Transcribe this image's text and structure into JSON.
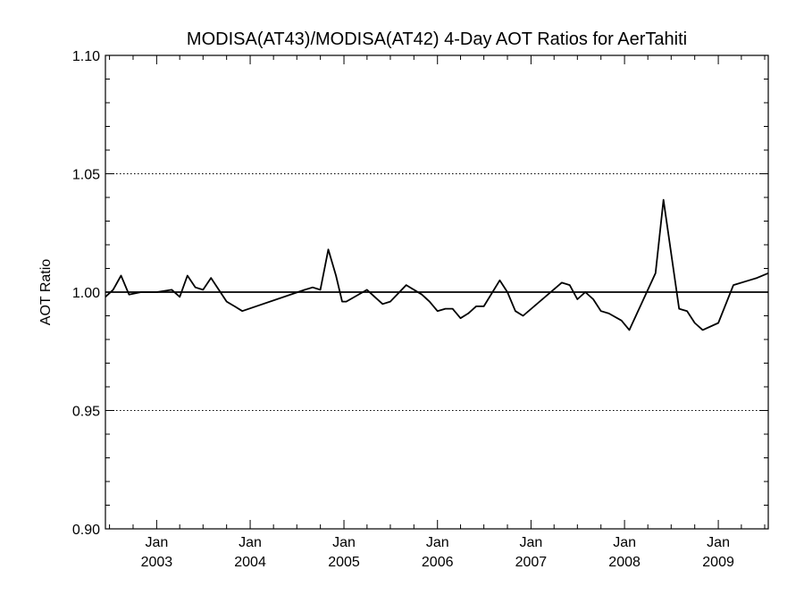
{
  "chart_data": {
    "type": "line",
    "title": "MODISA(AT43)/MODISA(AT42) 4-Day AOT Ratios for AerTahiti",
    "xlabel": "",
    "ylabel": "AOT Ratio",
    "ylim": [
      0.9,
      1.1
    ],
    "xlim": [
      "2002-06-15",
      "2009-07-15"
    ],
    "y_ticks": [
      0.9,
      0.95,
      1.0,
      1.05,
      1.1
    ],
    "y_tick_labels": [
      "0.90",
      "0.95",
      "1.00",
      "1.05",
      "1.10"
    ],
    "x_ticks": [
      {
        "date": "2003-01-01",
        "month": "Jan",
        "year": "2003"
      },
      {
        "date": "2004-01-01",
        "month": "Jan",
        "year": "2004"
      },
      {
        "date": "2005-01-01",
        "month": "Jan",
        "year": "2005"
      },
      {
        "date": "2006-01-01",
        "month": "Jan",
        "year": "2006"
      },
      {
        "date": "2007-01-01",
        "month": "Jan",
        "year": "2007"
      },
      {
        "date": "2008-01-01",
        "month": "Jan",
        "year": "2008"
      },
      {
        "date": "2009-01-01",
        "month": "Jan",
        "year": "2009"
      }
    ],
    "reference_line": 1.0,
    "gridlines_dotted_at": [
      0.95,
      1.05
    ],
    "series": [
      {
        "color": "#000000",
        "x": [
          "2002-06-15",
          "2002-07-15",
          "2002-08-15",
          "2002-09-15",
          "2002-11-01",
          "2003-01-01",
          "2003-03-01",
          "2003-04-01",
          "2003-05-01",
          "2003-06-01",
          "2003-07-01",
          "2003-08-01",
          "2003-10-01",
          "2003-11-01",
          "2003-12-01",
          "2004-08-01",
          "2004-09-01",
          "2004-10-01",
          "2004-11-01",
          "2004-12-01",
          "2004-12-25",
          "2005-01-10",
          "2005-04-01",
          "2005-05-01",
          "2005-06-01",
          "2005-07-01",
          "2005-09-01",
          "2005-11-01",
          "2005-12-01",
          "2006-01-01",
          "2006-02-01",
          "2006-03-01",
          "2006-04-01",
          "2006-05-01",
          "2006-06-01",
          "2006-07-01",
          "2006-09-01",
          "2006-10-01",
          "2006-11-01",
          "2006-12-01",
          "2007-05-01",
          "2007-06-01",
          "2007-07-01",
          "2007-08-01",
          "2007-09-01",
          "2007-10-01",
          "2007-11-01",
          "2007-12-20",
          "2008-01-20",
          "2008-05-01",
          "2008-06-01",
          "2008-08-01",
          "2008-09-01",
          "2008-10-01",
          "2008-11-01",
          "2009-01-01",
          "2009-03-01",
          "2009-05-01",
          "2009-06-01",
          "2009-07-15"
        ],
        "y": [
          0.998,
          1.001,
          1.007,
          0.999,
          1.0,
          1.0,
          1.001,
          0.998,
          1.007,
          1.002,
          1.001,
          1.006,
          0.996,
          0.994,
          0.992,
          1.001,
          1.002,
          1.001,
          1.018,
          1.007,
          0.996,
          0.996,
          1.001,
          0.998,
          0.995,
          0.996,
          1.003,
          0.999,
          0.996,
          0.992,
          0.993,
          0.993,
          0.989,
          0.991,
          0.994,
          0.994,
          1.005,
          1.0,
          0.992,
          0.99,
          1.004,
          1.003,
          0.997,
          1.0,
          0.997,
          0.992,
          0.991,
          0.988,
          0.984,
          1.008,
          1.039,
          0.993,
          0.992,
          0.987,
          0.984,
          0.987,
          1.003,
          1.005,
          1.006,
          1.008
        ]
      }
    ]
  }
}
